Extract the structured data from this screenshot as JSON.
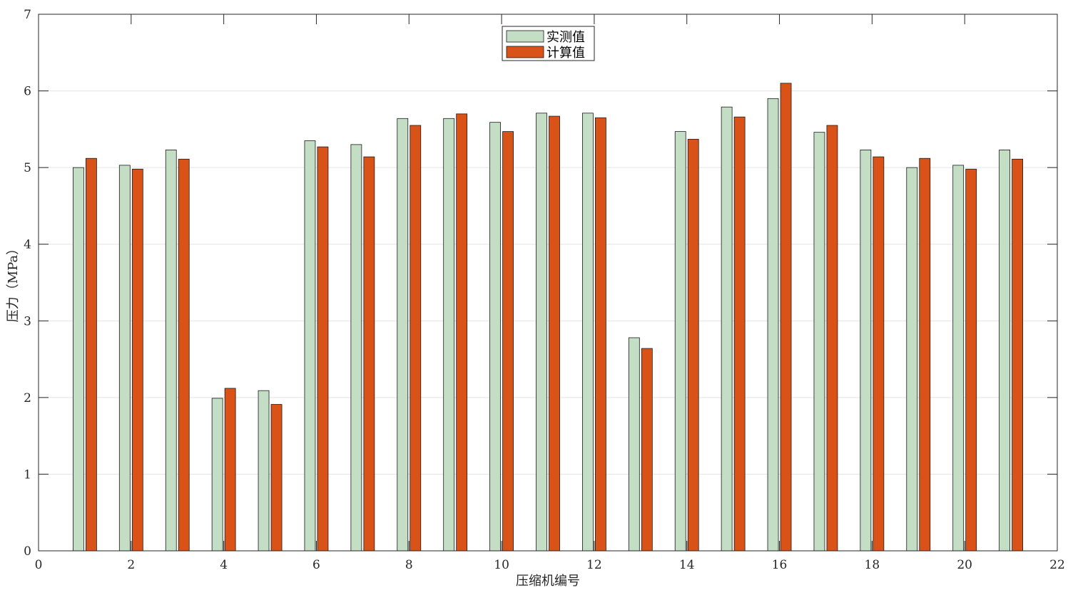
{
  "chart_data": {
    "type": "bar",
    "title": "",
    "xlabel": "压缩机编号",
    "ylabel": "压力（MPa）",
    "xlim": [
      0,
      22
    ],
    "ylim": [
      0,
      7
    ],
    "xticks": [
      0,
      2,
      4,
      6,
      8,
      10,
      12,
      14,
      16,
      18,
      20,
      22
    ],
    "yticks": [
      0,
      1,
      2,
      3,
      4,
      5,
      6,
      7
    ],
    "grid": true,
    "legend_position": "top-center",
    "categories": [
      1,
      2,
      3,
      4,
      5,
      6,
      7,
      8,
      9,
      10,
      11,
      12,
      13,
      14,
      15,
      16,
      17,
      18,
      19,
      20,
      21
    ],
    "series": [
      {
        "name": "实测值",
        "color": "#c3dec5",
        "values": [
          5.0,
          5.03,
          5.23,
          1.99,
          2.09,
          5.35,
          5.3,
          5.64,
          5.64,
          5.59,
          5.71,
          5.71,
          2.78,
          5.47,
          5.79,
          5.9,
          5.46,
          5.23,
          5.0,
          5.03,
          5.23
        ]
      },
      {
        "name": "计算值",
        "color": "#d95319",
        "values": [
          5.12,
          4.98,
          5.11,
          2.12,
          1.91,
          5.27,
          5.14,
          5.55,
          5.7,
          5.47,
          5.67,
          5.65,
          2.64,
          5.37,
          5.66,
          6.1,
          5.55,
          5.14,
          5.12,
          4.98,
          5.11
        ]
      }
    ]
  }
}
